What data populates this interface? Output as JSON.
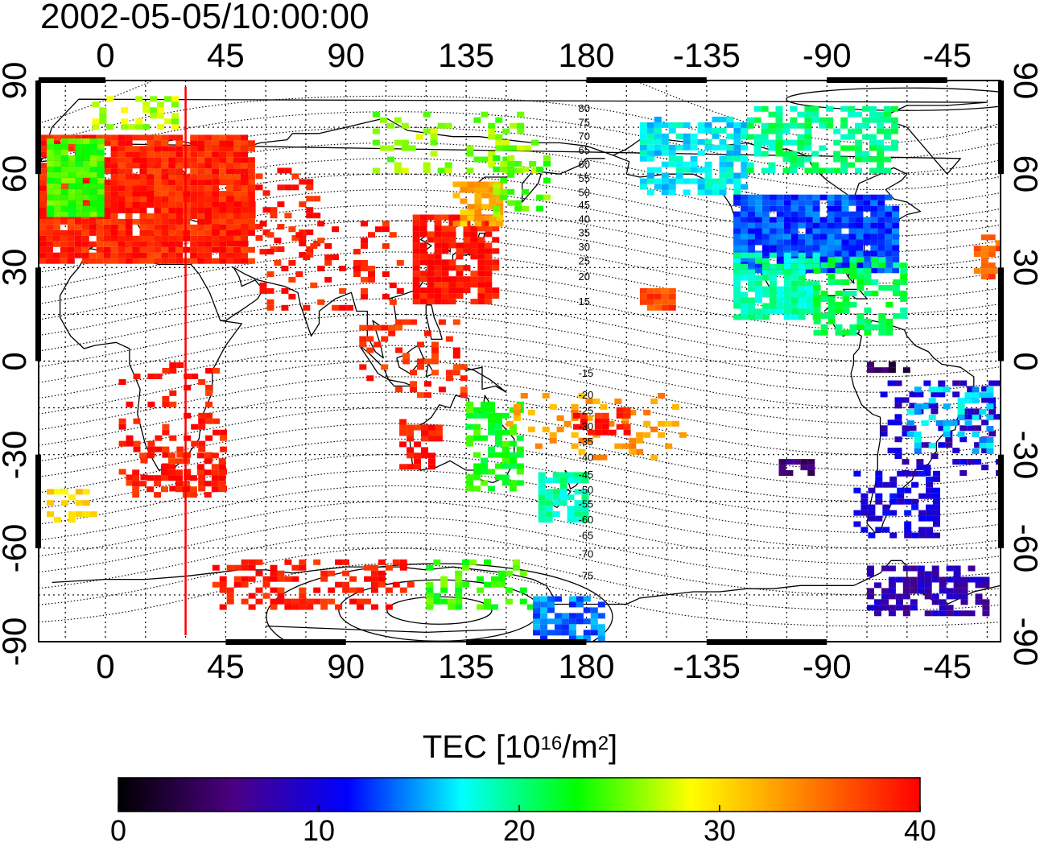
{
  "chart_data": {
    "type": "heatmap",
    "title": "2002-05-05/10:00:00",
    "projection": "equirectangular world map",
    "x_top_ticks": [
      "0",
      "45",
      "90",
      "135",
      "180",
      "-135",
      "-90",
      "-45"
    ],
    "x_bottom_ticks": [
      "0",
      "45",
      "90",
      "135",
      "180",
      "-135",
      "-90",
      "-45"
    ],
    "y_left_ticks": [
      "90",
      "60",
      "30",
      "0",
      "-30",
      "-60",
      "-90"
    ],
    "y_right_ticks": [
      "90",
      "60",
      "30",
      "0",
      "-30",
      "-60",
      "-90"
    ],
    "xlim": [
      -25,
      335
    ],
    "ylim": [
      -90,
      90
    ],
    "grid": true,
    "grid_spacing_x": 15,
    "grid_spacing_y": 15,
    "colorbar": {
      "label_main": "TEC  [10",
      "label_sup1": "16",
      "label_mid": "/m",
      "label_sup2": "2",
      "label_end": "]",
      "min": 0,
      "max": 40,
      "ticks": [
        "0",
        "10",
        "20",
        "30",
        "40"
      ],
      "colormap": [
        "#000000",
        "#4b0082",
        "#0000ff",
        "#00ffff",
        "#00ff00",
        "#ffff00",
        "#ff8000",
        "#ff0000"
      ]
    },
    "terminator_longitude": 30,
    "terminator_color": "#ff0000",
    "magnetic_latitude_labels": [
      {
        "text": "80",
        "lat": 81
      },
      {
        "text": "75",
        "lat": 76.5
      },
      {
        "text": "70",
        "lat": 72
      },
      {
        "text": "65",
        "lat": 67.5
      },
      {
        "text": "60",
        "lat": 63
      },
      {
        "text": "55",
        "lat": 58.5
      },
      {
        "text": "50",
        "lat": 54
      },
      {
        "text": "45",
        "lat": 50
      },
      {
        "text": "40",
        "lat": 45.5
      },
      {
        "text": "35",
        "lat": 41
      },
      {
        "text": "30",
        "lat": 36.5
      },
      {
        "text": "25",
        "lat": 32
      },
      {
        "text": "20",
        "lat": 27
      },
      {
        "text": "15",
        "lat": 19
      },
      {
        "text": "-15",
        "lat": -4
      },
      {
        "text": "-20",
        "lat": -11
      },
      {
        "text": "-25",
        "lat": -16
      },
      {
        "text": "-30",
        "lat": -21
      },
      {
        "text": "-35",
        "lat": -26
      },
      {
        "text": "-40",
        "lat": -31
      },
      {
        "text": "-45",
        "lat": -36.5
      },
      {
        "text": "-50",
        "lat": -41.5
      },
      {
        "text": "-55",
        "lat": -46
      },
      {
        "text": "-60",
        "lat": -51
      },
      {
        "text": "-65",
        "lat": -56
      },
      {
        "text": "-70",
        "lat": -62
      },
      {
        "text": "-75",
        "lat": -69
      }
    ],
    "magnetic_label_lon": 180,
    "tec_regions": [
      {
        "lon": [
          -25,
          55
        ],
        "lat": [
          33,
          73
        ],
        "tec": 38.5,
        "density": 0.95
      },
      {
        "lon": [
          -22,
          -3
        ],
        "lat": [
          48,
          72
        ],
        "tec": 24,
        "density": 0.9
      },
      {
        "lon": [
          -5,
          25
        ],
        "lat": [
          76,
          85
        ],
        "tec": 27,
        "density": 0.4
      },
      {
        "lon": [
          40,
          80
        ],
        "lat": [
          35,
          62
        ],
        "tec": 39,
        "density": 0.28
      },
      {
        "lon": [
          55,
          110
        ],
        "lat": [
          18,
          45
        ],
        "tec": 39,
        "density": 0.18
      },
      {
        "lon": [
          115,
          145
        ],
        "lat": [
          20,
          48
        ],
        "tec": 39,
        "density": 0.85
      },
      {
        "lon": [
          130,
          147
        ],
        "lat": [
          45,
          58
        ],
        "tec": 32,
        "density": 0.7
      },
      {
        "lon": [
          100,
          160
        ],
        "lat": [
          62,
          80
        ],
        "tec": 26,
        "density": 0.25
      },
      {
        "lon": [
          145,
          165
        ],
        "lat": [
          48,
          66
        ],
        "tec": 25,
        "density": 0.35
      },
      {
        "lon": [
          95,
          135
        ],
        "lat": [
          -10,
          15
        ],
        "tec": 38,
        "density": 0.25
      },
      {
        "lon": [
          5,
          45
        ],
        "lat": [
          -40,
          0
        ],
        "tec": 39,
        "density": 0.2
      },
      {
        "lon": [
          10,
          45
        ],
        "lat": [
          -42,
          -28
        ],
        "tec": 39,
        "density": 0.6
      },
      {
        "lon": [
          110,
          125
        ],
        "lat": [
          -33,
          -18
        ],
        "tec": 39,
        "density": 0.5
      },
      {
        "lon": [
          135,
          155
        ],
        "lat": [
          -40,
          -12
        ],
        "tec": 23,
        "density": 0.55
      },
      {
        "lon": [
          162,
          180
        ],
        "lat": [
          -50,
          -35
        ],
        "tec": 19,
        "density": 0.7
      },
      {
        "lon": [
          150,
          215
        ],
        "lat": [
          -30,
          -10
        ],
        "tec": 33,
        "density": 0.2
      },
      {
        "lon": [
          175,
          195
        ],
        "lat": [
          -22,
          -12
        ],
        "tec": 39,
        "density": 0.5
      },
      {
        "lon": [
          40,
          115
        ],
        "lat": [
          -78,
          -62
        ],
        "tec": 39,
        "density": 0.45
      },
      {
        "lon": [
          120,
          160
        ],
        "lat": [
          -78,
          -62
        ],
        "tec": 24,
        "density": 0.3
      },
      {
        "lon": [
          160,
          185
        ],
        "lat": [
          -88,
          -75
        ],
        "tec": 14,
        "density": 0.55
      },
      {
        "lon": [
          200,
          240
        ],
        "lat": [
          55,
          80
        ],
        "tec": 17,
        "density": 0.7
      },
      {
        "lon": [
          240,
          295
        ],
        "lat": [
          62,
          82
        ],
        "tec": 20,
        "density": 0.55
      },
      {
        "lon": [
          235,
          295
        ],
        "lat": [
          30,
          55
        ],
        "tec": 13,
        "density": 0.92
      },
      {
        "lon": [
          235,
          265
        ],
        "lat": [
          15,
          35
        ],
        "tec": 19,
        "density": 0.8
      },
      {
        "lon": [
          265,
          300
        ],
        "lat": [
          10,
          35
        ],
        "tec": 21,
        "density": 0.55
      },
      {
        "lon": [
          200,
          212
        ],
        "lat": [
          18,
          25
        ],
        "tec": 37,
        "density": 0.8
      },
      {
        "lon": [
          285,
          300
        ],
        "lat": [
          -2,
          0
        ],
        "tec": 4,
        "density": 0.7
      },
      {
        "lon": [
          290,
          335
        ],
        "lat": [
          -35,
          -5
        ],
        "tec": 9,
        "density": 0.3
      },
      {
        "lon": [
          300,
          330
        ],
        "lat": [
          -28,
          -8
        ],
        "tec": 16,
        "density": 0.35
      },
      {
        "lon": [
          280,
          310
        ],
        "lat": [
          -55,
          -35
        ],
        "tec": 10,
        "density": 0.5
      },
      {
        "lon": [
          285,
          330
        ],
        "lat": [
          -80,
          -65
        ],
        "tec": 8,
        "density": 0.6
      },
      {
        "lon": [
          252,
          265
        ],
        "lat": [
          -35,
          -30
        ],
        "tec": 5,
        "density": 0.7
      },
      {
        "lon": [
          -22,
          -5
        ],
        "lat": [
          -50,
          -40
        ],
        "tec": 30,
        "density": 0.35
      },
      {
        "lon": [
          325,
          335
        ],
        "lat": [
          28,
          42
        ],
        "tec": 36,
        "density": 0.5
      }
    ]
  }
}
